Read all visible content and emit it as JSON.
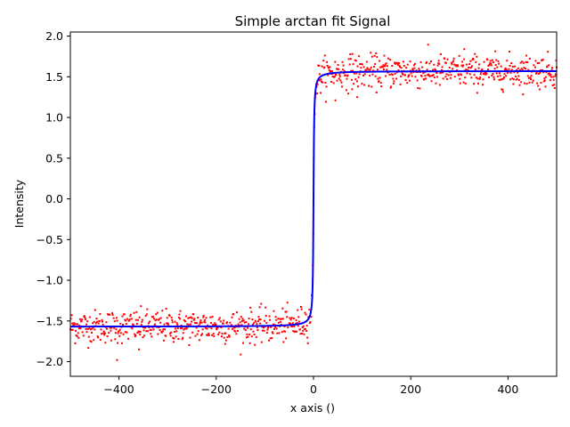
{
  "chart_data": {
    "type": "scatter",
    "title": "Simple arctan fit Signal",
    "xlabel": "x axis ()",
    "ylabel": "Intensity",
    "xlim": [
      -500,
      500
    ],
    "ylim": [
      -2.18,
      2.05
    ],
    "xticks": [
      -400,
      -200,
      0,
      200,
      400
    ],
    "xtick_labels": [
      "−400",
      "−200",
      "0",
      "200",
      "400"
    ],
    "yticks": [
      -2.0,
      -1.5,
      -1.0,
      -0.5,
      0.0,
      0.5,
      1.0,
      1.5,
      2.0
    ],
    "ytick_labels": [
      "−2.0",
      "−1.5",
      "−1.0",
      "−0.5",
      "0.0",
      "0.5",
      "1.0",
      "1.5",
      "2.0"
    ],
    "grid": false,
    "series": [
      {
        "kind": "scatter",
        "color": "#ff0000",
        "x_range": [
          -500,
          500
        ],
        "n_points": 1000,
        "model": "arctan(x)",
        "noise_sd": 0.1,
        "extreme_points": [
          [
            -404,
            -1.98
          ],
          [
            -359,
            -1.85
          ],
          [
            90,
            1.25
          ],
          [
            45,
            1.21
          ],
          [
            310,
            1.84
          ],
          [
            80,
            1.78
          ]
        ]
      },
      {
        "kind": "line",
        "color": "#0000ff",
        "model": "arctan(x)",
        "x_range": [
          -500,
          500
        ]
      }
    ]
  }
}
